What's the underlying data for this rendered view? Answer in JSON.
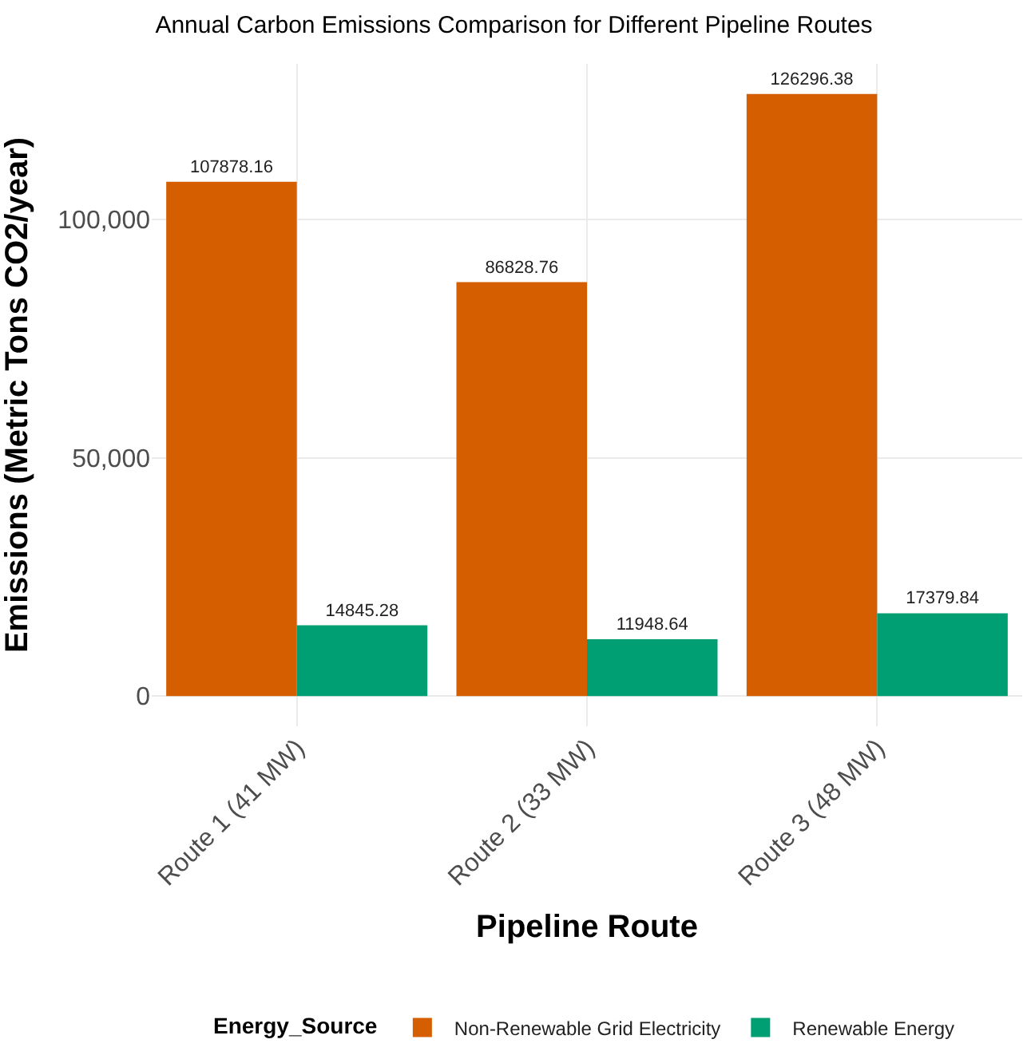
{
  "chart_data": {
    "type": "bar",
    "title": "Annual Carbon Emissions Comparison for Different Pipeline Routes",
    "xlabel": "Pipeline Route",
    "ylabel": "Emissions (Metric Tons CO2/year)",
    "legend_title": "Energy_Source",
    "categories": [
      "Route 1 (41 MW)",
      "Route 2 (33 MW)",
      "Route 3 (48 MW)"
    ],
    "series": [
      {
        "name": "Non-Renewable Grid Electricity",
        "color": "#d55e00",
        "values": [
          107878.16,
          86828.76,
          126296.38
        ]
      },
      {
        "name": "Renewable Energy",
        "color": "#009e73",
        "values": [
          14845.28,
          11948.64,
          17379.84
        ]
      }
    ],
    "ylim": [
      -6315,
      132611
    ],
    "yticks": [
      {
        "value": 0,
        "label": "0"
      },
      {
        "value": 50000,
        "label": "50,000"
      },
      {
        "value": 100000,
        "label": "100,000"
      }
    ],
    "data_labels": true,
    "grid": true,
    "legend": "bottom"
  }
}
